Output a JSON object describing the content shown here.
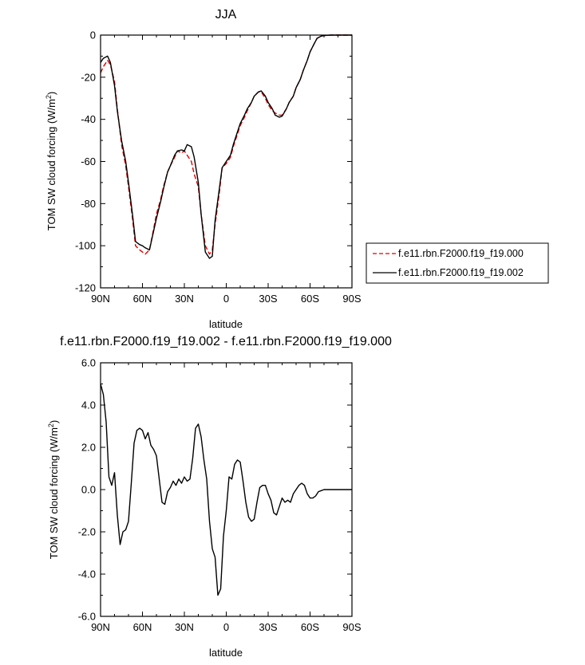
{
  "chart_data": [
    {
      "type": "line",
      "title": "JJA",
      "xlabel": "latitude",
      "ylabel": "TOM SW cloud forcing (W/m",
      "ylabel_sup": "2",
      "ylabel_end": ")",
      "xlim": [
        90,
        -90
      ],
      "ylim": [
        -120,
        0
      ],
      "x_tick_values": [
        90,
        60,
        30,
        0,
        -30,
        -60,
        -90
      ],
      "x_tick_labels": [
        "90N",
        "60N",
        "30N",
        "0",
        "30S",
        "60S",
        "90S"
      ],
      "y_tick_values": [
        0,
        -20,
        -40,
        -60,
        -80,
        -100,
        -120
      ],
      "y_tick_labels": [
        "0",
        "-20",
        "-40",
        "-60",
        "-80",
        "-100",
        "-120"
      ],
      "legend_position": "right-bottom-outside",
      "series": [
        {
          "name": "f.e11.rbn.F2000.f19_f19.000",
          "color": "#e00000",
          "dash": "dashed",
          "x": [
            90,
            88,
            85,
            83,
            80,
            78,
            75,
            72,
            70,
            67,
            65,
            62,
            60,
            58,
            55,
            52,
            50,
            47,
            45,
            42,
            40,
            37,
            35,
            32,
            30,
            28,
            25,
            23,
            20,
            18,
            15,
            12,
            10,
            8,
            5,
            3,
            0,
            -3,
            -5,
            -8,
            -10,
            -13,
            -15,
            -18,
            -20,
            -23,
            -25,
            -28,
            -30,
            -33,
            -35,
            -38,
            -40,
            -43,
            -45,
            -48,
            -50,
            -53,
            -55,
            -58,
            -60,
            -63,
            -65,
            -68,
            -70,
            -75,
            -80,
            -85,
            -90
          ],
          "y": [
            -18,
            -15,
            -12,
            -14,
            -22,
            -35,
            -52,
            -62,
            -72,
            -88,
            -100,
            -102,
            -103,
            -104,
            -102,
            -92,
            -85,
            -78,
            -72,
            -65,
            -62,
            -58,
            -55,
            -56,
            -55,
            -57,
            -60,
            -66,
            -72,
            -85,
            -100,
            -104,
            -102,
            -90,
            -75,
            -63,
            -61,
            -58,
            -53,
            -47,
            -43,
            -39,
            -36,
            -32,
            -29,
            -27,
            -27,
            -30,
            -33,
            -36,
            -37,
            -38,
            -38,
            -35,
            -32,
            -29,
            -25,
            -21,
            -17,
            -12,
            -8,
            -4,
            -1.5,
            -0.5,
            -0.2,
            0,
            0,
            0,
            0
          ]
        },
        {
          "name": "f.e11.rbn.F2000.f19_f19.002",
          "color": "#000000",
          "dash": "solid",
          "x": [
            90,
            88,
            85,
            83,
            80,
            78,
            75,
            72,
            70,
            67,
            65,
            62,
            60,
            58,
            55,
            52,
            50,
            47,
            45,
            42,
            40,
            37,
            35,
            32,
            30,
            28,
            25,
            23,
            20,
            18,
            15,
            12,
            10,
            8,
            5,
            3,
            0,
            -3,
            -5,
            -8,
            -10,
            -13,
            -15,
            -18,
            -20,
            -23,
            -25,
            -28,
            -30,
            -33,
            -35,
            -38,
            -40,
            -43,
            -45,
            -48,
            -50,
            -53,
            -55,
            -58,
            -60,
            -63,
            -65,
            -68,
            -70,
            -75,
            -80,
            -85,
            -90
          ],
          "y": [
            -13,
            -11,
            -10,
            -13,
            -24,
            -36,
            -50,
            -60,
            -70,
            -86,
            -98,
            -99.5,
            -100,
            -101,
            -102,
            -93,
            -87,
            -79,
            -73,
            -65,
            -62,
            -57,
            -55,
            -54.5,
            -55,
            -52,
            -53,
            -58,
            -70,
            -85,
            -103,
            -106,
            -105,
            -88,
            -73,
            -63,
            -60,
            -57,
            -52,
            -46,
            -42,
            -38,
            -35,
            -32,
            -29,
            -27,
            -26.5,
            -29,
            -32,
            -35,
            -38,
            -39,
            -38.5,
            -35,
            -32,
            -29,
            -25,
            -21,
            -17,
            -12,
            -8,
            -4,
            -1.5,
            -0.5,
            -0.2,
            0,
            0,
            0,
            0
          ]
        }
      ]
    },
    {
      "type": "line",
      "title": "f.e11.rbn.F2000.f19_f19.002 - f.e11.rbn.F2000.f19_f19.000",
      "xlabel": "latitude",
      "ylabel": "TOM SW cloud forcing (W/m",
      "ylabel_sup": "2",
      "ylabel_end": ")",
      "xlim": [
        90,
        -90
      ],
      "ylim": [
        -6,
        6
      ],
      "x_tick_values": [
        90,
        60,
        30,
        0,
        -30,
        -60,
        -90
      ],
      "x_tick_labels": [
        "90N",
        "60N",
        "30N",
        "0",
        "30S",
        "60S",
        "90S"
      ],
      "y_tick_values": [
        6,
        4,
        2,
        0,
        -2,
        -4,
        -6
      ],
      "y_tick_labels": [
        "6.0",
        "4.0",
        "2.0",
        "0.0",
        "-2.0",
        "-4.0",
        "-6.0"
      ],
      "series": [
        {
          "name": "",
          "color": "#000000",
          "dash": "solid",
          "x": [
            90,
            88,
            86,
            84,
            82,
            80,
            78,
            76,
            74,
            72,
            70,
            68,
            66,
            64,
            62,
            60,
            58,
            56,
            54,
            52,
            50,
            48,
            46,
            44,
            42,
            40,
            38,
            36,
            34,
            32,
            30,
            28,
            26,
            24,
            22,
            20,
            18,
            16,
            14,
            12,
            10,
            8,
            6,
            4,
            2,
            0,
            -2,
            -4,
            -6,
            -8,
            -10,
            -12,
            -14,
            -16,
            -18,
            -20,
            -22,
            -24,
            -26,
            -28,
            -30,
            -32,
            -34,
            -36,
            -38,
            -40,
            -42,
            -44,
            -46,
            -48,
            -50,
            -52,
            -54,
            -56,
            -58,
            -60,
            -62,
            -64,
            -66,
            -68,
            -70,
            -75,
            -80,
            -85,
            -90
          ],
          "y": [
            5.0,
            4.5,
            3.2,
            0.6,
            0.2,
            0.8,
            -1.2,
            -2.6,
            -2.0,
            -1.9,
            -1.5,
            0.3,
            2.2,
            2.8,
            2.9,
            2.8,
            2.4,
            2.7,
            2.1,
            1.9,
            1.6,
            0.5,
            -0.6,
            -0.7,
            -0.1,
            0.1,
            0.4,
            0.2,
            0.5,
            0.3,
            0.6,
            0.4,
            0.5,
            1.5,
            2.9,
            3.1,
            2.5,
            1.4,
            0.5,
            -1.5,
            -2.8,
            -3.2,
            -5.0,
            -4.7,
            -2.2,
            -1.0,
            0.6,
            0.5,
            1.2,
            1.4,
            1.3,
            0.4,
            -0.6,
            -1.3,
            -1.5,
            -1.4,
            -0.6,
            0.1,
            0.2,
            0.2,
            -0.2,
            -0.5,
            -1.1,
            -1.2,
            -0.8,
            -0.4,
            -0.6,
            -0.5,
            -0.6,
            -0.2,
            0.0,
            0.2,
            0.3,
            0.2,
            -0.2,
            -0.4,
            -0.4,
            -0.3,
            -0.1,
            -0.05,
            0.0,
            0.0,
            0.0,
            0.0,
            0.0
          ]
        }
      ]
    }
  ]
}
